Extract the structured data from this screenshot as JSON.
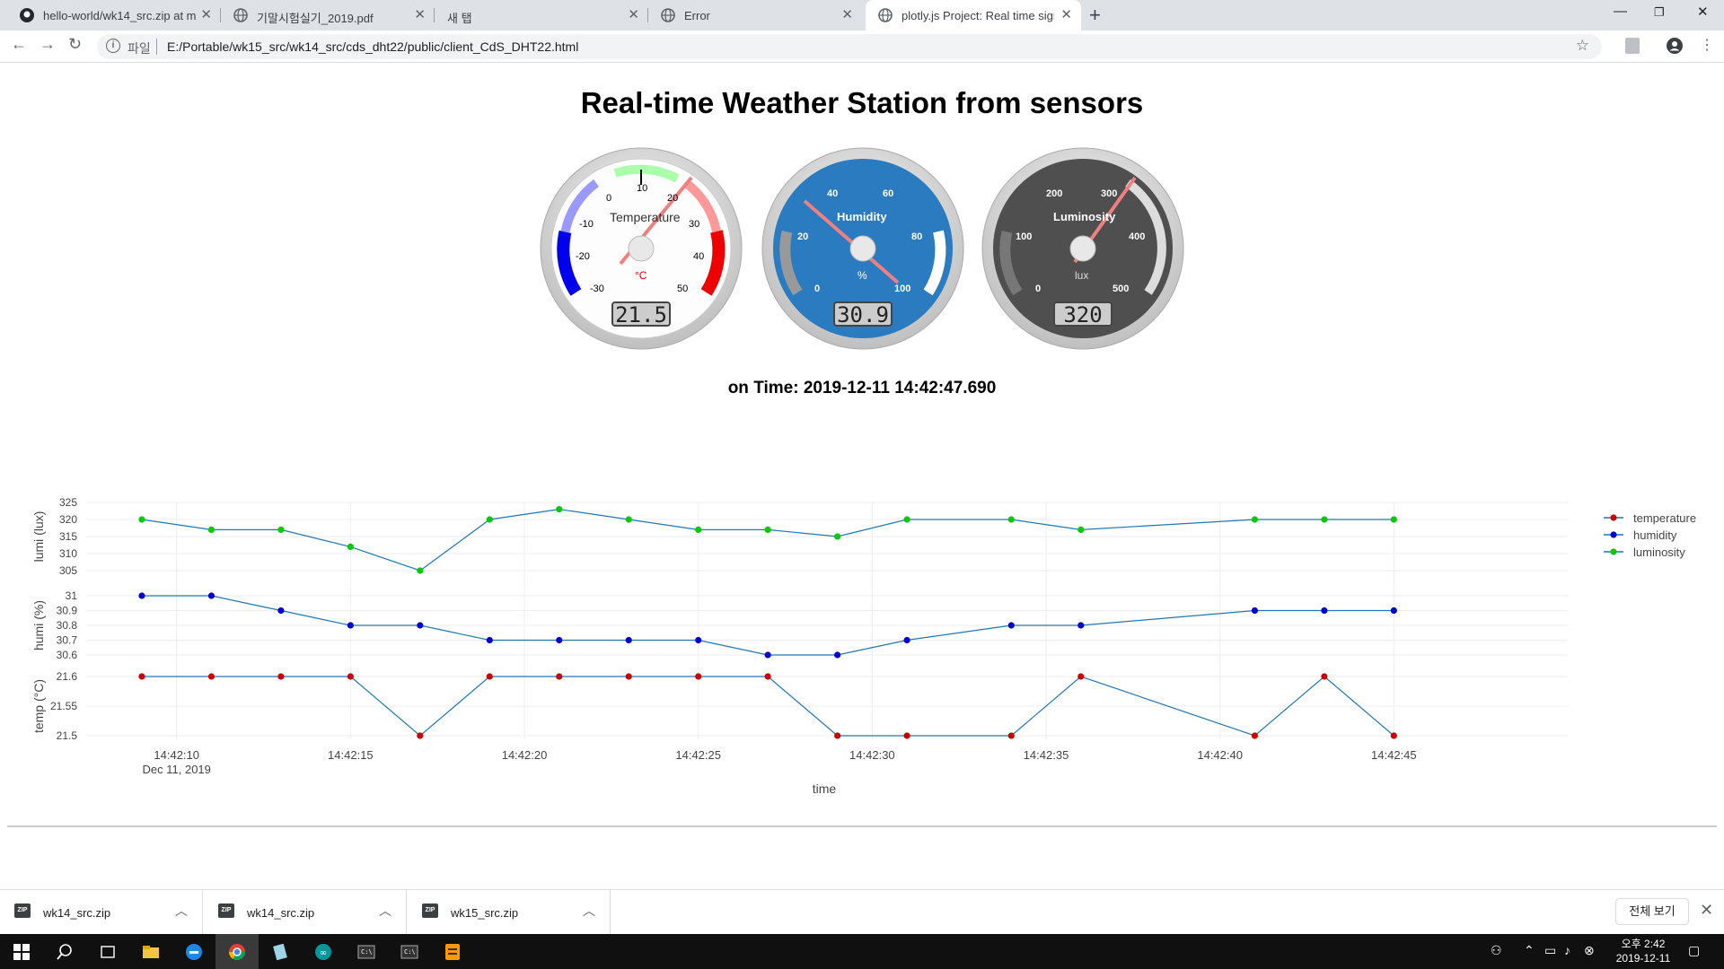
{
  "browser": {
    "tabs": [
      {
        "title": "hello-world/wk14_src.zip at mas",
        "favicon": "github-icon"
      },
      {
        "title": "기말시험실기_2019.pdf",
        "favicon": "globe-icon"
      },
      {
        "title": "새 탭",
        "favicon": ""
      },
      {
        "title": "Error",
        "favicon": "globe-icon"
      },
      {
        "title": "plotly.js Project: Real time signa",
        "favicon": "globe-icon"
      }
    ],
    "address": {
      "scheme": "파일",
      "url": "E:/Portable/wk15_src/wk14_src/cds_dht22/public/client_CdS_DHT22.html"
    }
  },
  "page": {
    "title": "Real-time Weather Station from sensors",
    "time_prefix": "on Time:",
    "time_value": "2019-12-11 14:42:47.690"
  },
  "gauges": {
    "temperature": {
      "title": "Temperature",
      "unit": "°C",
      "value": "21.5",
      "ticks": [
        "-30",
        "-20",
        "-10",
        "0",
        "10",
        "20",
        "30",
        "40",
        "50"
      ]
    },
    "humidity": {
      "title": "Humidity",
      "unit": "%",
      "value": "30.9",
      "ticks": [
        "0",
        "20",
        "40",
        "60",
        "80",
        "100"
      ]
    },
    "luminosity": {
      "title": "Luminosity",
      "unit": "lux",
      "value": "320",
      "ticks": [
        "0",
        "100",
        "200",
        "300",
        "400",
        "500"
      ]
    }
  },
  "chart_data": {
    "type": "line",
    "x": [
      "14:42:09",
      "14:42:11",
      "14:42:13",
      "14:42:15",
      "14:42:17",
      "14:42:19",
      "14:42:21",
      "14:42:23",
      "14:42:25",
      "14:42:27",
      "14:42:29",
      "14:42:31",
      "14:42:34",
      "14:42:36",
      "14:42:38",
      "14:42:41",
      "14:42:43",
      "14:42:45",
      "14:42:47"
    ],
    "xlabel": "time",
    "x_ticks": [
      "14:42:10",
      "14:42:15",
      "14:42:20",
      "14:42:25",
      "14:42:30",
      "14:42:35",
      "14:42:40",
      "14:42:45"
    ],
    "x_date_label": "Dec 11, 2019",
    "series": [
      {
        "name": "temperature",
        "ylabel": "temp (°C)",
        "y_ticks": [
          "21.5",
          "21.55",
          "21.6"
        ],
        "ylim": [
          21.5,
          21.6
        ],
        "color": "#cc0000",
        "values": [
          21.6,
          21.6,
          21.6,
          21.6,
          21.5,
          21.6,
          21.6,
          21.6,
          21.6,
          21.6,
          21.5,
          21.5,
          21.5,
          21.6,
          null,
          21.5,
          21.6,
          21.5,
          null
        ]
      },
      {
        "name": "humidity",
        "ylabel": "humi (%)",
        "y_ticks": [
          "30.6",
          "30.7",
          "30.8",
          "30.9",
          "31"
        ],
        "ylim": [
          30.6,
          31
        ],
        "color": "#0000cc",
        "values": [
          31,
          31,
          30.9,
          30.8,
          30.8,
          30.7,
          30.7,
          30.7,
          30.7,
          30.6,
          30.6,
          30.7,
          30.8,
          30.8,
          null,
          30.9,
          30.9,
          30.9,
          null
        ]
      },
      {
        "name": "luminosity",
        "ylabel": "lumi (lux)",
        "y_ticks": [
          "305",
          "310",
          "315",
          "320",
          "325"
        ],
        "ylim": [
          305,
          325
        ],
        "color": "#00cc00",
        "values": [
          320,
          317,
          317,
          312,
          305,
          320,
          323,
          320,
          317,
          317,
          315,
          320,
          320,
          317,
          null,
          320,
          320,
          320,
          null
        ]
      }
    ],
    "legend_position": "top-right",
    "line_color": "#1f77b4"
  },
  "downloads": {
    "items": [
      "wk14_src.zip",
      "wk14_src.zip",
      "wk15_src.zip"
    ],
    "show_all": "전체 보기"
  },
  "taskbar": {
    "time": "오후 2:42",
    "date": "2019-12-11"
  }
}
